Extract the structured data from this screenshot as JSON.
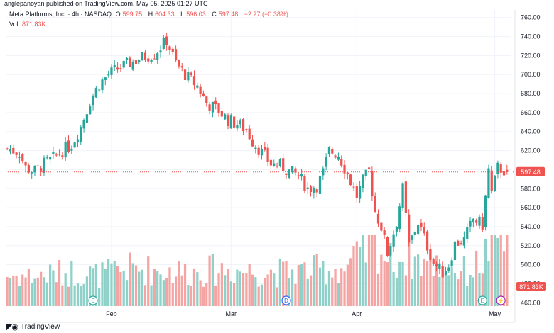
{
  "header": {
    "publisher_line": "anglepanoyan published on TradingView.com, May 05, 2025 01:27 UTC"
  },
  "legend": {
    "symbol": "Meta Platforms, Inc. · 4h · NASDAQ",
    "open_label": "O",
    "open": "599.75",
    "high_label": "H",
    "high": "604.33",
    "low_label": "L",
    "low": "596.03",
    "close_label": "C",
    "close": "597.48",
    "change": "−2.27 (−0.38%)",
    "vol_label": "Vol",
    "vol": "871.83K"
  },
  "footer": {
    "brand_icon": "tradingview-logo-icon",
    "brand": "TradingView"
  },
  "colors": {
    "up": "#26a69a",
    "down": "#ef5350",
    "up_vol": "#8fd1c8",
    "down_vol": "#f4a5a3",
    "grid": "#f0f3fa"
  },
  "chart_data": {
    "type": "candlestick",
    "title": "Meta Platforms, Inc. · 4h · NASDAQ",
    "ylim": [
      452,
      768
    ],
    "yticks": [
      "760.00",
      "740.00",
      "720.00",
      "700.00",
      "680.00",
      "660.00",
      "640.00",
      "620.00",
      "600.00",
      "580.00",
      "560.00",
      "540.00",
      "520.00",
      "500.00",
      "480.00",
      "460.00"
    ],
    "xticks": [
      {
        "label": "Feb",
        "index": 34
      },
      {
        "label": "Mar",
        "index": 73
      },
      {
        "label": "Apr",
        "index": 114
      },
      {
        "label": "May",
        "index": 159
      }
    ],
    "n_bars": 164,
    "last_price_label": "597.48",
    "volume_label": "871.83K",
    "event_markers": [
      {
        "index": 28,
        "type": "earnings",
        "label": "E"
      },
      {
        "index": 91,
        "type": "dividend",
        "label": "D"
      },
      {
        "index": 155,
        "type": "earnings",
        "label": "E"
      },
      {
        "index": 161,
        "type": "split",
        "label": "⚡"
      }
    ],
    "close_path": [
      [
        0,
        622
      ],
      [
        4,
        618
      ],
      [
        6,
        602
      ],
      [
        9,
        598
      ],
      [
        12,
        606
      ],
      [
        15,
        612
      ],
      [
        18,
        620
      ],
      [
        21,
        626
      ],
      [
        24,
        645
      ],
      [
        27,
        672
      ],
      [
        30,
        690
      ],
      [
        33,
        700
      ],
      [
        36,
        706
      ],
      [
        40,
        712
      ],
      [
        44,
        718
      ],
      [
        48,
        722
      ],
      [
        52,
        736
      ],
      [
        55,
        712
      ],
      [
        58,
        700
      ],
      [
        62,
        688
      ],
      [
        65,
        670
      ],
      [
        69,
        662
      ],
      [
        72,
        652
      ],
      [
        75,
        648
      ],
      [
        78,
        642
      ],
      [
        80,
        630
      ],
      [
        83,
        618
      ],
      [
        86,
        606
      ],
      [
        89,
        604
      ],
      [
        92,
        598
      ],
      [
        95,
        594
      ],
      [
        98,
        580
      ],
      [
        101,
        583
      ],
      [
        103,
        597
      ],
      [
        105,
        620
      ],
      [
        108,
        616
      ],
      [
        111,
        595
      ],
      [
        114,
        572
      ],
      [
        116,
        588
      ],
      [
        118,
        598
      ],
      [
        120,
        556
      ],
      [
        122,
        540
      ],
      [
        124,
        512
      ],
      [
        127,
        545
      ],
      [
        129,
        580
      ],
      [
        131,
        520
      ],
      [
        134,
        545
      ],
      [
        136,
        528
      ],
      [
        139,
        502
      ],
      [
        142,
        492
      ],
      [
        144,
        500
      ],
      [
        146,
        522
      ],
      [
        149,
        526
      ],
      [
        152,
        548
      ],
      [
        155,
        542
      ],
      [
        157,
        600
      ],
      [
        158,
        575
      ],
      [
        160,
        602
      ],
      [
        163,
        597.48
      ]
    ],
    "volume_path": [
      [
        0,
        380
      ],
      [
        10,
        370
      ],
      [
        20,
        420
      ],
      [
        30,
        390
      ],
      [
        40,
        470
      ],
      [
        50,
        440
      ],
      [
        60,
        420
      ],
      [
        70,
        460
      ],
      [
        80,
        430
      ],
      [
        90,
        420
      ],
      [
        100,
        450
      ],
      [
        110,
        470
      ],
      [
        115,
        620
      ],
      [
        120,
        760
      ],
      [
        125,
        560
      ],
      [
        130,
        600
      ],
      [
        140,
        520
      ],
      [
        150,
        420
      ],
      [
        155,
        560
      ],
      [
        159,
        880
      ],
      [
        163,
        871.83
      ]
    ],
    "volume_max": 880
  }
}
